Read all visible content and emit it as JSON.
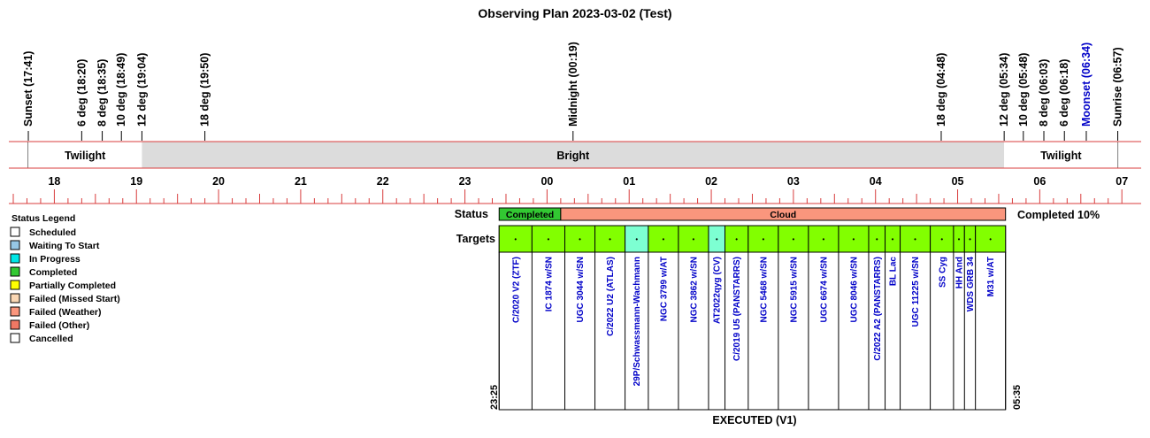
{
  "title": "Observing Plan 2023-03-02 (Test)",
  "events": [
    {
      "label": "Sunset (17:41)",
      "time": "17:41",
      "color": "#000000"
    },
    {
      "label": "6 deg (18:20)",
      "time": "18:20",
      "color": "#000000"
    },
    {
      "label": "8 deg (18:35)",
      "time": "18:35",
      "color": "#000000"
    },
    {
      "label": "10 deg (18:49)",
      "time": "18:49",
      "color": "#000000"
    },
    {
      "label": "12 deg (19:04)",
      "time": "19:04",
      "color": "#000000"
    },
    {
      "label": "18 deg (19:50)",
      "time": "19:50",
      "color": "#000000"
    },
    {
      "label": "Midnight (00:19)",
      "time": "00:19",
      "color": "#000000"
    },
    {
      "label": "18 deg (04:48)",
      "time": "04:48",
      "color": "#000000"
    },
    {
      "label": "12 deg (05:34)",
      "time": "05:34",
      "color": "#000000"
    },
    {
      "label": "10 deg (05:48)",
      "time": "05:48",
      "color": "#000000"
    },
    {
      "label": "8 deg (06:03)",
      "time": "06:03",
      "color": "#000000"
    },
    {
      "label": "6 deg (06:18)",
      "time": "06:18",
      "color": "#000000"
    },
    {
      "label": "Moonset (06:34)",
      "time": "06:34",
      "color": "#0000c8"
    },
    {
      "label": "Sunrise (06:57)",
      "time": "06:57",
      "color": "#000000"
    }
  ],
  "bands": [
    {
      "label": "Twilight",
      "start": "17:41",
      "end": "19:04",
      "fill": "#ffffff"
    },
    {
      "label": "Bright",
      "start": "19:04",
      "end": "05:34",
      "fill": "#dcdcdc"
    },
    {
      "label": "Twilight",
      "start": "05:34",
      "end": "06:57",
      "fill": "#ffffff"
    }
  ],
  "hour_labels": [
    "18",
    "19",
    "20",
    "21",
    "22",
    "23",
    "00",
    "01",
    "02",
    "03",
    "04",
    "05",
    "06",
    "07"
  ],
  "status_row": {
    "label": "Status",
    "segments": [
      {
        "label": "Completed",
        "start": "23:25",
        "end": "00:10",
        "fill": "#32c832"
      },
      {
        "label": "Cloud",
        "start": "00:10",
        "end": "05:35",
        "fill": "#fa967d"
      }
    ],
    "summary": "Completed 10%"
  },
  "targets_row": {
    "label": "Targets",
    "mark": "•",
    "items": [
      {
        "name": "C/2020 V2 (ZTF)",
        "start": "23:25",
        "end": "23:49",
        "fill": "#82ff00"
      },
      {
        "name": "IC 1874 w/SN",
        "start": "23:49",
        "end": "00:13",
        "fill": "#82ff00"
      },
      {
        "name": "UGC 3044 w/SN",
        "start": "00:13",
        "end": "00:35",
        "fill": "#82ff00"
      },
      {
        "name": "C/2022 U2 (ATLAS)",
        "start": "00:35",
        "end": "00:57",
        "fill": "#82ff00"
      },
      {
        "name": "29P/Schwassmann-Wachmann",
        "start": "00:57",
        "end": "01:14",
        "fill": "#7dffd2"
      },
      {
        "name": "NGC 3799 w/AT",
        "start": "01:14",
        "end": "01:36",
        "fill": "#82ff00"
      },
      {
        "name": "NGC 3862 w/SN",
        "start": "01:36",
        "end": "01:58",
        "fill": "#82ff00"
      },
      {
        "name": "AT2022qyg (CV)",
        "start": "01:58",
        "end": "02:10",
        "fill": "#7dffd2"
      },
      {
        "name": "C/2019 U5 (PANSTARRS)",
        "start": "02:10",
        "end": "02:27",
        "fill": "#82ff00"
      },
      {
        "name": "NGC 5468 w/SN",
        "start": "02:27",
        "end": "02:49",
        "fill": "#82ff00"
      },
      {
        "name": "NGC 5915 w/SN",
        "start": "02:49",
        "end": "03:11",
        "fill": "#82ff00"
      },
      {
        "name": "UGC 6674 w/SN",
        "start": "03:11",
        "end": "03:33",
        "fill": "#82ff00"
      },
      {
        "name": "UGC 8046 w/SN",
        "start": "03:33",
        "end": "03:55",
        "fill": "#82ff00"
      },
      {
        "name": "C/2022 A2 (PANSTARRS)",
        "start": "03:55",
        "end": "04:07",
        "fill": "#82ff00"
      },
      {
        "name": "BL Lac",
        "start": "04:07",
        "end": "04:18",
        "fill": "#82ff00"
      },
      {
        "name": "UGC 11225 w/SN",
        "start": "04:18",
        "end": "04:40",
        "fill": "#82ff00"
      },
      {
        "name": "SS Cyg",
        "start": "04:40",
        "end": "04:57",
        "fill": "#82ff00"
      },
      {
        "name": "HH And",
        "start": "04:57",
        "end": "05:05",
        "fill": "#82ff00"
      },
      {
        "name": "WDS GRB 34",
        "start": "05:05",
        "end": "05:13",
        "fill": "#82ff00"
      },
      {
        "name": "M31 w/AT",
        "start": "05:13",
        "end": "05:35",
        "fill": "#82ff00"
      }
    ]
  },
  "plan_start_label": "23:25",
  "plan_end_label": "05:35",
  "executed_label": "EXECUTED (V1)",
  "legend": {
    "title": "Status Legend",
    "items": [
      {
        "label": "Scheduled",
        "color": "#ffffff"
      },
      {
        "label": "Waiting To Start",
        "color": "#96c8e6"
      },
      {
        "label": "In Progress",
        "color": "#00e6e6"
      },
      {
        "label": "Completed",
        "color": "#32c832"
      },
      {
        "label": "Partially Completed",
        "color": "#ffff00"
      },
      {
        "label": "Failed (Missed Start)",
        "color": "#fad7b4"
      },
      {
        "label": "Failed (Weather)",
        "color": "#fa967d"
      },
      {
        "label": "Failed (Other)",
        "color": "#f07864"
      },
      {
        "label": "Cancelled",
        "color": "#ffffff"
      }
    ]
  },
  "chart_data": {
    "type": "timeline",
    "title": "Observing Plan 2023-03-02 (Test)",
    "x_axis": {
      "unit": "hour",
      "start": "17:30",
      "end": "07:00",
      "tick_labels": [
        "18",
        "19",
        "20",
        "21",
        "22",
        "23",
        "00",
        "01",
        "02",
        "03",
        "04",
        "05",
        "06",
        "07"
      ]
    },
    "rows": [
      "Status",
      "Targets"
    ],
    "summary": "Completed 10%"
  }
}
